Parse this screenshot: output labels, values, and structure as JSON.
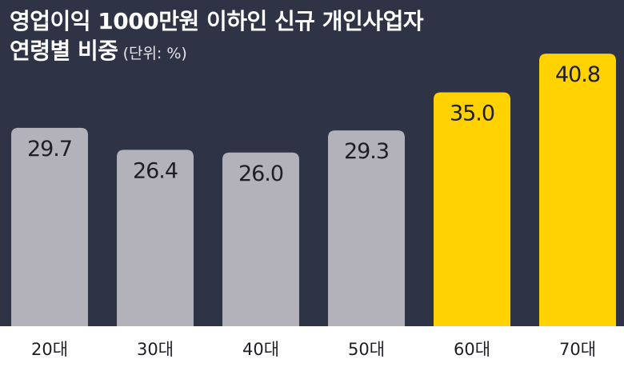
{
  "chart_data": {
    "type": "bar",
    "title_line1": "영업이익 1000만원 이하인 신규 개인사업자",
    "title_line2": "연령별 비중",
    "unit_note": "(단위: %)",
    "categories": [
      "20대",
      "30대",
      "40대",
      "50대",
      "60대",
      "70대"
    ],
    "values": [
      29.7,
      26.4,
      26.0,
      29.3,
      35.0,
      40.8
    ],
    "value_labels": [
      "29.7",
      "26.4",
      "26.0",
      "29.3",
      "35.0",
      "40.8"
    ],
    "highlighted": [
      false,
      false,
      false,
      false,
      true,
      true
    ],
    "colors": {
      "default_bar": "#b3b2bb",
      "highlight_bar": "#ffd200",
      "background": "#2f3346",
      "baseline_band": "#ffffff"
    },
    "ylim": [
      0,
      45
    ],
    "grid": false,
    "legend": "none"
  }
}
